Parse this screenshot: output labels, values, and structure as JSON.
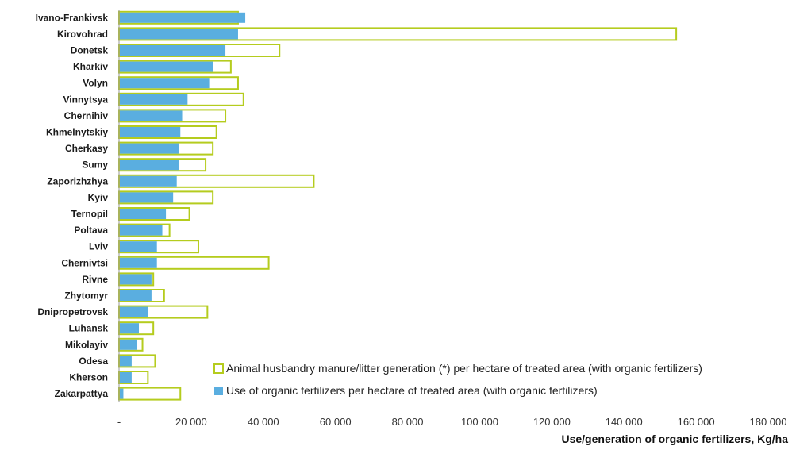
{
  "chart_data": {
    "type": "bar",
    "orientation": "horizontal",
    "categories": [
      "Ivano-Frankivsk",
      "Kirovohrad",
      "Donetsk",
      "Kharkiv",
      "Volyn",
      "Vinnytsya",
      "Chernihiv",
      "Khmelnytskiy",
      "Cherkasy",
      "Sumy",
      "Zaporizhzhya",
      "Kyiv",
      "Ternopil",
      "Poltava",
      "Lviv",
      "Chernivtsi",
      "Rivne",
      "Zhytomyr",
      "Dnipropetrovsk",
      "Luhansk",
      "Mikolayiv",
      "Odesa",
      "Kherson",
      "Zakarpattya"
    ],
    "series": [
      {
        "name": "Animal husbandry manure/litter generation (*) per hectare of treated area (with organic fertilizers)",
        "color": "#b5cc1e",
        "style": "outline",
        "values": [
          33000,
          154500,
          44500,
          31000,
          33000,
          34500,
          29500,
          27000,
          26000,
          24000,
          54000,
          26000,
          19500,
          14000,
          22000,
          41500,
          9500,
          12500,
          24500,
          9500,
          6500,
          10000,
          8000,
          17000
        ]
      },
      {
        "name": "Use of organic fertilizers per hectare of treated area (with organic fertilizers)",
        "color": "#5aaee0",
        "style": "filled",
        "values": [
          35000,
          33000,
          29500,
          26000,
          25000,
          19000,
          17500,
          17000,
          16500,
          16500,
          16000,
          15000,
          13000,
          12000,
          10500,
          10500,
          9000,
          9000,
          8000,
          5500,
          5000,
          3500,
          3500,
          1200
        ]
      }
    ],
    "xlabel": "Use/generation  of organic fertilizers, Kg/ha",
    "xlim": [
      0,
      180000
    ],
    "xticks": [
      0,
      20000,
      40000,
      60000,
      80000,
      100000,
      120000,
      140000,
      160000,
      180000
    ],
    "xtick_labels": [
      "-",
      "20 000",
      "40 000",
      "60 000",
      "80 000",
      "100 000",
      "120 000",
      "140 000",
      "160 000",
      "180 000"
    ],
    "grid": false,
    "legend_position": "bottom-right"
  }
}
